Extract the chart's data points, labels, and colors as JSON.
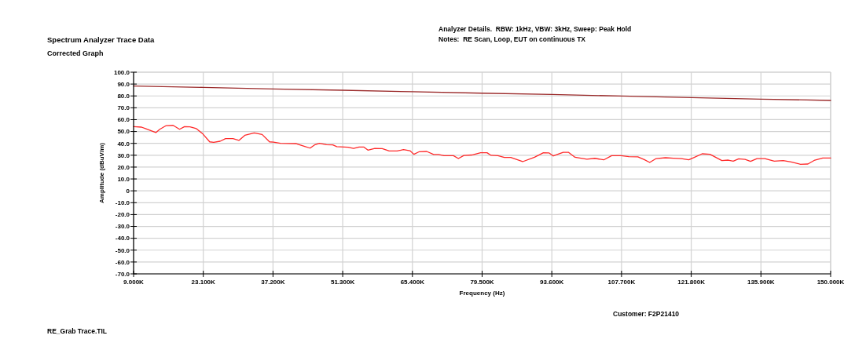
{
  "chart_data": {
    "type": "line",
    "title": "Spectrum Analyzer Trace Data",
    "subtitle": "Corrected Graph",
    "annotations": [
      "Analyzer Details.  RBW: 1kHz, VBW: 3kHz, Sweep: Peak Hold",
      "Notes:  RE Scan, Loop, EUT on continuous TX",
      "RE_Grab Trace.TIL",
      "Customer: F2P21410"
    ],
    "xlabel": "Frequency (Hz)",
    "ylabel": "Amplitude (dBuV/m)",
    "xlim": [
      9000,
      150000
    ],
    "ylim": [
      -70,
      100
    ],
    "xticks": [
      {
        "value": 9000,
        "label": "9.000K"
      },
      {
        "value": 23100,
        "label": "23.100K"
      },
      {
        "value": 37200,
        "label": "37.200K"
      },
      {
        "value": 51300,
        "label": "51.300K"
      },
      {
        "value": 65400,
        "label": "65.400K"
      },
      {
        "value": 79500,
        "label": "79.500K"
      },
      {
        "value": 93600,
        "label": "93.600K"
      },
      {
        "value": 107700,
        "label": "107.700K"
      },
      {
        "value": 121800,
        "label": "121.800K"
      },
      {
        "value": 135900,
        "label": "135.900K"
      },
      {
        "value": 150000,
        "label": "150.000K"
      }
    ],
    "yticks": [
      {
        "value": 100,
        "label": "100.0"
      },
      {
        "value": 90,
        "label": "90.0"
      },
      {
        "value": 80,
        "label": "80.0"
      },
      {
        "value": 70,
        "label": "70.0"
      },
      {
        "value": 60,
        "label": "60.0"
      },
      {
        "value": 50,
        "label": "50.0"
      },
      {
        "value": 40,
        "label": "40.0"
      },
      {
        "value": 30,
        "label": "30.0"
      },
      {
        "value": 20,
        "label": "20.0"
      },
      {
        "value": 10,
        "label": "10.0"
      },
      0,
      {
        "value": -10,
        "label": "-10.0"
      },
      {
        "value": -20,
        "label": "-20.0"
      },
      {
        "value": -30,
        "label": "-30.0"
      },
      {
        "value": -40,
        "label": "-40.0"
      },
      {
        "value": -50,
        "label": "-50.0"
      },
      {
        "value": -60,
        "label": "-60.0"
      },
      {
        "value": -70,
        "label": "-70.0"
      }
    ],
    "grid": true,
    "series": [
      {
        "color": "#9b2a2a",
        "x": [
          9000,
          23100,
          37200,
          51300,
          65400,
          79500,
          93600,
          107700,
          121800,
          135900,
          150000
        ],
        "values": [
          88.3,
          87.2,
          85.9,
          84.8,
          83.5,
          82.3,
          81.2,
          79.9,
          78.6,
          77.3,
          76.2
        ]
      },
      {
        "color": "#ff2a2a",
        "x": [
          9000,
          10600,
          11400,
          13500,
          14300,
          15600,
          17000,
          18300,
          19300,
          20400,
          21700,
          23000,
          24400,
          25200,
          26500,
          27600,
          29100,
          30300,
          31500,
          33400,
          35000,
          36500,
          37300,
          38700,
          41900,
          43500,
          44700,
          45600,
          46600,
          48000,
          49300,
          50100,
          52400,
          53500,
          54600,
          55600,
          56400,
          57800,
          59300,
          60700,
          62300,
          63600,
          64900,
          65700,
          66800,
          68300,
          69700,
          70700,
          71800,
          73700,
          74700,
          75800,
          77400,
          79200,
          80500,
          81300,
          82700,
          84000,
          85300,
          87700,
          90100,
          91900,
          93000,
          93900,
          95900,
          97000,
          98300,
          100700,
          102300,
          104100,
          105700,
          107600,
          109200,
          111000,
          112300,
          113400,
          114700,
          116600,
          118200,
          119800,
          121300,
          122400,
          124000,
          125600,
          128000,
          129300,
          130300,
          131400,
          132700,
          133800,
          135100,
          136700,
          138600,
          140400,
          142000,
          143900,
          145400,
          146800,
          148400,
          150000
        ],
        "values": [
          54.1,
          53.7,
          52.4,
          49.1,
          51.9,
          55.0,
          55.2,
          51.9,
          54.1,
          54.0,
          52.4,
          48.0,
          41.3,
          40.9,
          41.8,
          44.0,
          44.0,
          42.5,
          46.8,
          48.8,
          47.5,
          41.3,
          41.1,
          40.0,
          39.8,
          37.6,
          36.0,
          38.7,
          40.0,
          38.9,
          38.7,
          37.2,
          36.7,
          35.8,
          36.9,
          36.9,
          34.3,
          35.8,
          35.6,
          33.6,
          33.6,
          34.7,
          33.8,
          30.8,
          33.0,
          33.2,
          30.6,
          30.6,
          29.6,
          29.6,
          27.2,
          29.8,
          30.2,
          32.1,
          32.1,
          29.9,
          29.7,
          28.1,
          28.1,
          24.6,
          28.3,
          32.1,
          32.0,
          29.4,
          32.5,
          32.4,
          28.3,
          26.6,
          27.4,
          26.1,
          29.6,
          29.6,
          28.8,
          28.6,
          26.3,
          23.9,
          27.2,
          27.9,
          27.5,
          27.2,
          26.1,
          28.1,
          31.2,
          30.8,
          25.5,
          25.9,
          25.0,
          27.0,
          26.5,
          24.8,
          27.2,
          27.2,
          25.0,
          25.5,
          24.3,
          22.4,
          22.6,
          25.9,
          27.6,
          27.6
        ]
      }
    ]
  }
}
